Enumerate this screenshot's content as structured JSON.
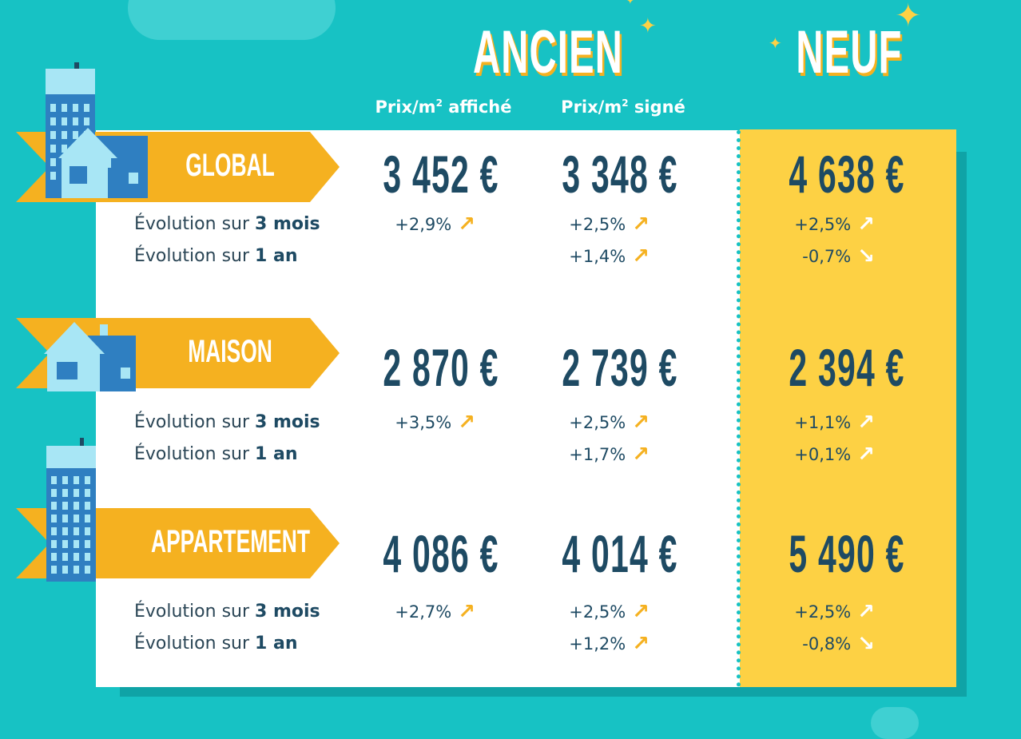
{
  "headers": {
    "ancien": "ANCIEN",
    "neuf": "NEUF"
  },
  "columns": {
    "affiche": {
      "prefix": "Prix/m",
      "sup": "2",
      "suffix": " affiché"
    },
    "signe": {
      "prefix": "Prix/m",
      "sup": "2",
      "suffix": " signé"
    }
  },
  "colors": {
    "background": "#17c2c4",
    "ribbon": "#f5b120",
    "neuf_panel": "#fdd144",
    "text": "#1e4a63"
  },
  "evolution_labels": {
    "three_months": {
      "prefix": "Évolution sur ",
      "bold": "3 mois"
    },
    "one_year": {
      "prefix": "Évolution sur ",
      "bold": "1 an"
    }
  },
  "sections": [
    {
      "label": "GLOBAL",
      "icon": "house-and-building-icon",
      "prices": {
        "affiche": "3 452 €",
        "signe": "3 348 €",
        "neuf": "4 638 €"
      },
      "three_months": {
        "affiche": {
          "value": "+2,9%",
          "trend": "up"
        },
        "signe": {
          "value": "+2,5%",
          "trend": "up"
        },
        "neuf": {
          "value": "+2,5%",
          "trend": "up"
        }
      },
      "one_year": {
        "signe": {
          "value": "+1,4%",
          "trend": "up"
        },
        "neuf": {
          "value": "-0,7%",
          "trend": "down"
        }
      }
    },
    {
      "label": "MAISON",
      "icon": "house-icon",
      "prices": {
        "affiche": "2 870 €",
        "signe": "2 739 €",
        "neuf": "2 394 €"
      },
      "three_months": {
        "affiche": {
          "value": "+3,5%",
          "trend": "up"
        },
        "signe": {
          "value": "+2,5%",
          "trend": "up"
        },
        "neuf": {
          "value": "+1,1%",
          "trend": "up"
        }
      },
      "one_year": {
        "signe": {
          "value": "+1,7%",
          "trend": "up"
        },
        "neuf": {
          "value": "+0,1%",
          "trend": "up"
        }
      }
    },
    {
      "label": "APPARTEMENT",
      "icon": "apartment-building-icon",
      "prices": {
        "affiche": "4 086 €",
        "signe": "4 014 €",
        "neuf": "5 490 €"
      },
      "three_months": {
        "affiche": {
          "value": "+2,7%",
          "trend": "up"
        },
        "signe": {
          "value": "+2,5%",
          "trend": "up"
        },
        "neuf": {
          "value": "+2,5%",
          "trend": "up"
        }
      },
      "one_year": {
        "signe": {
          "value": "+1,2%",
          "trend": "up"
        },
        "neuf": {
          "value": "-0,8%",
          "trend": "down"
        }
      }
    }
  ]
}
